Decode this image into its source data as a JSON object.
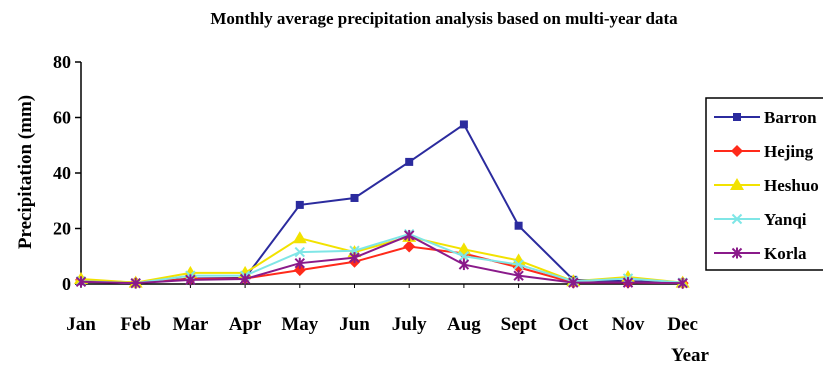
{
  "chart_data": {
    "type": "line",
    "title": "Monthly average precipitation analysis based on multi-year data",
    "xlabel": "Year",
    "ylabel": "Precipitation (mm)",
    "ylim": [
      0,
      80
    ],
    "yticks": [
      0,
      20,
      40,
      60,
      80
    ],
    "grid": false,
    "legend": "right",
    "categories": [
      "Jan",
      "Feb",
      "Mar",
      "Apr",
      "May",
      "Jun",
      "July",
      "Aug",
      "Sept",
      "Oct",
      "Nov",
      "Dec"
    ],
    "series": [
      {
        "name": "Barron",
        "color": "#2b2b9e",
        "marker": "square",
        "values": [
          1.0,
          0.3,
          2.0,
          2.2,
          28.5,
          31.0,
          44.0,
          57.5,
          21.0,
          1.5,
          1.0,
          0.5
        ]
      },
      {
        "name": "Hejing",
        "color": "#ff2a1a",
        "marker": "diamond",
        "values": [
          1.5,
          0.5,
          1.8,
          2.0,
          5.0,
          8.0,
          13.5,
          11.0,
          6.0,
          0.5,
          0.5,
          0.3
        ]
      },
      {
        "name": "Heshuo",
        "color": "#f2e200",
        "marker": "triangle",
        "values": [
          1.8,
          0.5,
          4.0,
          4.0,
          16.5,
          11.5,
          17.0,
          12.5,
          8.5,
          1.0,
          2.5,
          0.5
        ]
      },
      {
        "name": "Yanqi",
        "color": "#7fe6e6",
        "marker": "x",
        "values": [
          1.0,
          0.3,
          3.0,
          3.0,
          11.5,
          12.0,
          18.0,
          10.0,
          7.0,
          1.0,
          2.0,
          0.5
        ]
      },
      {
        "name": "Korla",
        "color": "#8a1a8a",
        "marker": "star",
        "values": [
          0.8,
          0.3,
          1.5,
          1.8,
          7.5,
          9.5,
          17.5,
          7.0,
          3.0,
          0.5,
          0.5,
          0.3
        ]
      }
    ]
  }
}
